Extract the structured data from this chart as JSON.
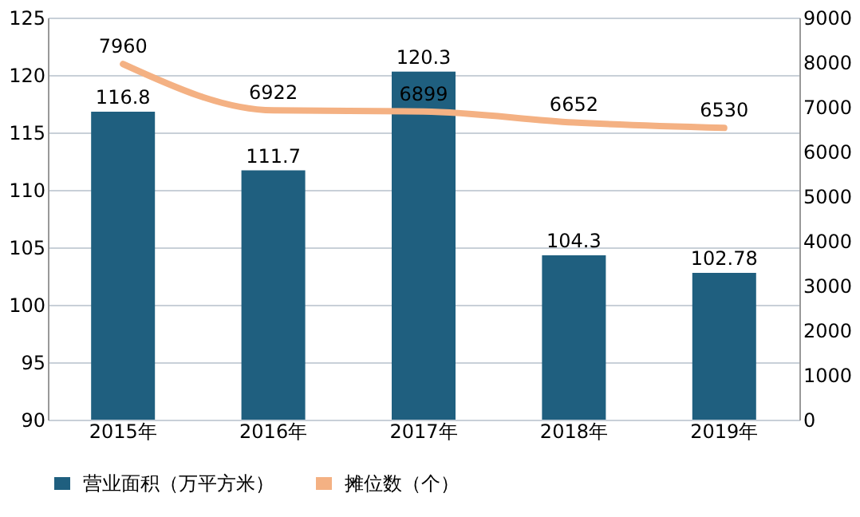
{
  "chart_data": {
    "type": "bar",
    "categories": [
      "2015年",
      "2016年",
      "2017年",
      "2018年",
      "2019年"
    ],
    "series": [
      {
        "name": "营业面积（万平方米）",
        "type": "bar",
        "color": "#1f5f7f",
        "values": [
          116.8,
          111.7,
          120.3,
          104.3,
          102.78
        ]
      },
      {
        "name": "摊位数（个）",
        "type": "line",
        "axis": "y2",
        "color": "#f4b183",
        "values": [
          7960,
          6922,
          6899,
          6652,
          6530
        ]
      }
    ],
    "ylim": [
      90,
      125
    ],
    "yticks": [
      90,
      95,
      100,
      105,
      110,
      115,
      120,
      125
    ],
    "y2lim": [
      0,
      9000
    ],
    "y2ticks": [
      0,
      1000,
      2000,
      3000,
      4000,
      5000,
      6000,
      7000,
      8000,
      9000
    ],
    "grid": "y",
    "legend": "bottom",
    "data_labels": true
  }
}
